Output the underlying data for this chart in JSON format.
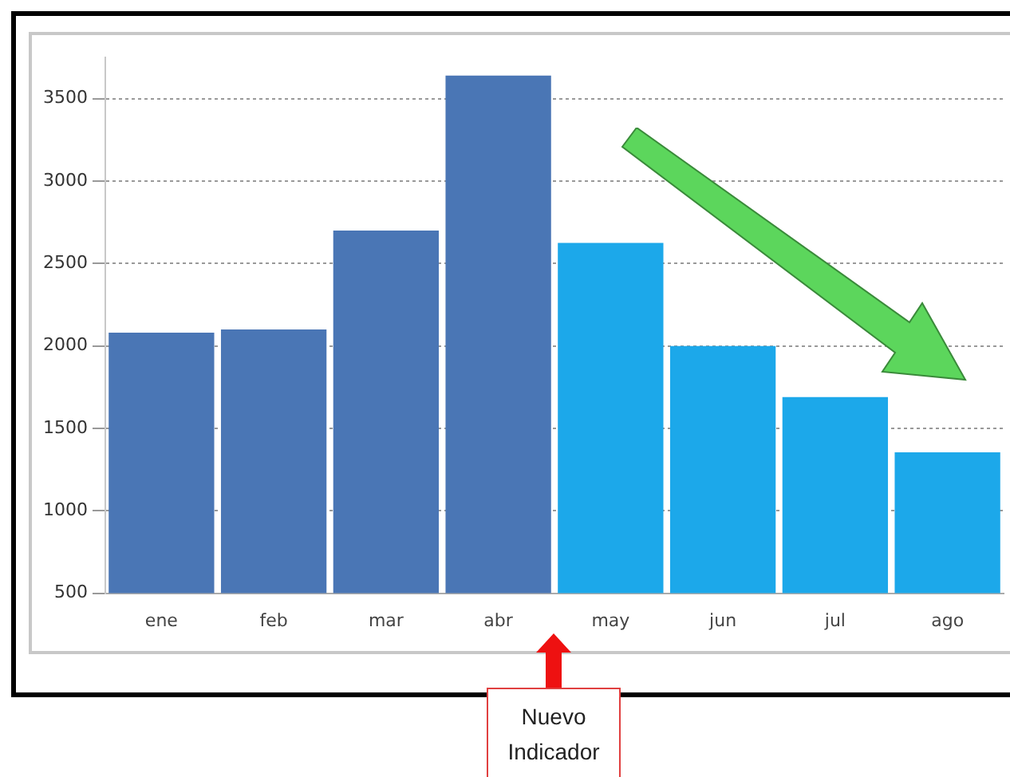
{
  "chart_data": {
    "type": "bar",
    "categories": [
      "ene",
      "feb",
      "mar",
      "abr",
      "may",
      "jun",
      "jul",
      "ago"
    ],
    "values": [
      2080,
      2100,
      2700,
      3640,
      2625,
      2000,
      1690,
      1355
    ],
    "colors": [
      "#4a76b5",
      "#4a76b5",
      "#4a76b5",
      "#4a76b5",
      "#1ca8ea",
      "#1ca8ea",
      "#1ca8ea",
      "#1ca8ea"
    ],
    "ylim": [
      500,
      3750
    ],
    "yticks": [
      500,
      1000,
      1500,
      2000,
      2500,
      3000,
      3500
    ],
    "grid": "y",
    "legend": false,
    "annotations": [
      "Nuevo Indicador"
    ]
  }
}
